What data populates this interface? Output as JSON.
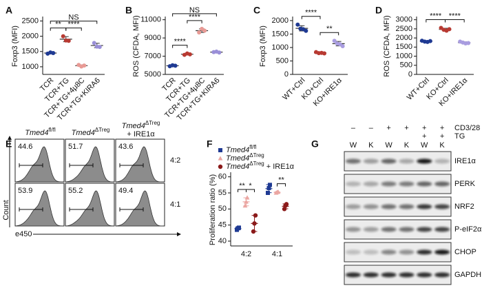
{
  "chart_data": [
    {
      "type": "dot",
      "panel": "A",
      "ylabel": "Foxp3 (MFI)",
      "categories": [
        "TCR",
        "TCR+TG",
        "TCR+TG+4μ8C",
        "TCR+TG+KIRA6"
      ],
      "colors": [
        "#1f3a93",
        "#b83a32",
        "#e89a95",
        "#9a8fd8"
      ],
      "values": [
        [
          1430,
          1470,
          1450
        ],
        [
          2000,
          1860,
          1850
        ],
        [
          1060,
          1010,
          1040
        ],
        [
          1780,
          1660,
          1650
        ]
      ],
      "ylim": [
        750,
        2600
      ],
      "yticks": [
        1000,
        1500,
        2000,
        2500
      ],
      "annotations": [
        {
          "text": "****",
          "from": 1,
          "to": 2
        },
        {
          "text": "**",
          "from": 0,
          "to": 1
        },
        {
          "text": "NS",
          "from": 0,
          "to": 3
        }
      ]
    },
    {
      "type": "dot",
      "panel": "B",
      "ylabel": "ROS (CFDA, MFI)",
      "categories": [
        "TCR",
        "TCR+TG",
        "TCR+TG+4μ8C",
        "TCR+TG+KIRA6"
      ],
      "colors": [
        "#1f3a93",
        "#b83a32",
        "#e89a95",
        "#9a8fd8"
      ],
      "values": [
        [
          5900,
          6000,
          5950
        ],
        [
          7150,
          7300,
          7200
        ],
        [
          9600,
          10000,
          9800
        ],
        [
          7450,
          7500,
          7400
        ]
      ],
      "ylim": [
        5000,
        11200
      ],
      "yticks": [
        5000,
        7000,
        9000,
        11000
      ],
      "annotations": [
        {
          "text": "****",
          "from": 1,
          "to": 2
        },
        {
          "text": "****",
          "from": 0,
          "to": 1
        },
        {
          "text": "NS",
          "from": 0,
          "to": 3
        }
      ]
    },
    {
      "type": "dot",
      "panel": "C",
      "ylabel": "Foxp3 (MFI)",
      "categories": [
        "WT+Ctrl",
        "KO+Ctrl",
        "KO+IRE1α"
      ],
      "colors": [
        "#1f3a93",
        "#b83a32",
        "#a99de0"
      ],
      "values": [
        [
          1850,
          1700,
          1680,
          1620
        ],
        [
          830,
          790,
          800,
          780
        ],
        [
          1250,
          1150,
          1120,
          1050
        ]
      ],
      "ylim": [
        0,
        2100
      ],
      "yticks": [
        0,
        500,
        1000,
        1500,
        2000
      ],
      "annotations": [
        {
          "text": "****",
          "from": 0,
          "to": 1
        },
        {
          "text": "**",
          "from": 1,
          "to": 2
        }
      ]
    },
    {
      "type": "dot",
      "panel": "D",
      "ylabel": "ROS (CFDA, MFI)",
      "categories": [
        "WT+Ctrl",
        "KO+Ctrl",
        "KO+IRE1α"
      ],
      "colors": [
        "#1f3a93",
        "#b83a32",
        "#a99de0"
      ],
      "values": [
        [
          1850,
          1800,
          1780,
          1830
        ],
        [
          2550,
          2450,
          2400,
          2480
        ],
        [
          1800,
          1750,
          1700,
          1720
        ]
      ],
      "ylim": [
        0,
        3100
      ],
      "yticks": [
        0,
        500,
        1000,
        1500,
        2000,
        2500,
        3000
      ],
      "annotations": [
        {
          "text": "****",
          "from": 0,
          "to": 1
        },
        {
          "text": "****",
          "from": 1,
          "to": 2
        }
      ]
    },
    {
      "type": "grouped-dot",
      "panel": "F",
      "ylabel": "Proliferation ratio (%)",
      "categories": [
        "4:2",
        "4:1"
      ],
      "ylim": [
        38.5,
        61
      ],
      "yticks": [
        40,
        45,
        50,
        55,
        60
      ],
      "series": [
        {
          "name": "Tmed4",
          "superscript": "fl/fl",
          "color": "#1f3a93",
          "marker": "square",
          "values": [
            [
              43.5,
              44,
              44.2
            ],
            [
              55,
              56.5,
              57.5
            ]
          ]
        },
        {
          "name": "Tmed4",
          "superscript": "ΔTreg",
          "color": "#eba6a2",
          "marker": "triangle",
          "values": [
            [
              51,
              52.2,
              53.5
            ],
            [
              55,
              55.2,
              55.3
            ]
          ]
        },
        {
          "name": "Tmed4",
          "superscript": "ΔTreg",
          "suffix": "+ IRE1α",
          "color": "#8b1a1a",
          "marker": "circle",
          "values": [
            [
              43,
              45.5,
              48
            ],
            [
              50,
              51,
              51.5
            ]
          ]
        }
      ],
      "annotations": [
        {
          "category": 0,
          "from": 0,
          "to": 1,
          "text": "**"
        },
        {
          "category": 0,
          "from": 1,
          "to": 2,
          "text": "*"
        },
        {
          "category": 1,
          "from": 1,
          "to": 2,
          "text": "**"
        }
      ]
    }
  ],
  "flow": {
    "panel": "E",
    "ylabel": "Count",
    "xlabel": "e450",
    "columns": [
      {
        "name": "Tmed4",
        "superscript": "fl/fl"
      },
      {
        "name": "Tmed4",
        "superscript": "ΔTreg"
      },
      {
        "name": "Tmed4",
        "superscript": "ΔTreg",
        "suffix": "+ IRE1α"
      }
    ],
    "rows": [
      "4:2",
      "4:1"
    ],
    "percentages": [
      [
        44.6,
        51.7,
        43.6
      ],
      [
        53.9,
        55.2,
        49.4
      ]
    ]
  },
  "blot": {
    "panel": "G",
    "treatments": [
      {
        "name": "CD3/28",
        "signs": [
          "–",
          "–",
          "+",
          "+",
          "+",
          "+"
        ]
      },
      {
        "name": "TG",
        "signs": [
          null,
          null,
          null,
          null,
          "+",
          "+"
        ]
      }
    ],
    "genotypes": [
      "W",
      "K",
      "W",
      "K",
      "W",
      "K"
    ],
    "proteins": [
      "IRE1α",
      "PERK",
      "NRF2",
      "P-eIF2α",
      "CHOP",
      "GAPDH"
    ]
  }
}
